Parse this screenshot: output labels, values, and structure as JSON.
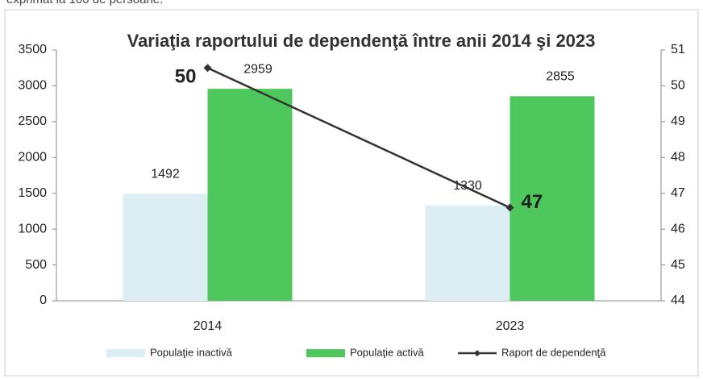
{
  "caption": "exprimat la 100 de persoane.",
  "chart_data": {
    "type": "bar",
    "title": "Variaţia raportului de dependenţă între anii 2014 şi 2023",
    "categories": [
      "2014",
      "2023"
    ],
    "series": [
      {
        "name": "Populaţie inactivă",
        "color": "#dcedf4",
        "values": [
          1492,
          1330
        ]
      },
      {
        "name": "Populaţie activă",
        "color": "#4ec85c",
        "values": [
          2959,
          2855
        ]
      },
      {
        "name": "Raport de dependenţă",
        "color": "#333333",
        "type": "line",
        "axis": "y2",
        "values": [
          50.5,
          46.6
        ],
        "value_labels": [
          "50",
          "47"
        ]
      }
    ],
    "ylim": [
      0,
      3500
    ],
    "yticks": [
      0,
      500,
      1000,
      1500,
      2000,
      2500,
      3000,
      3500
    ],
    "y2lim": [
      44,
      51
    ],
    "y2ticks": [
      44,
      45,
      46,
      47,
      48,
      49,
      50,
      51
    ],
    "legend": "bottom"
  }
}
